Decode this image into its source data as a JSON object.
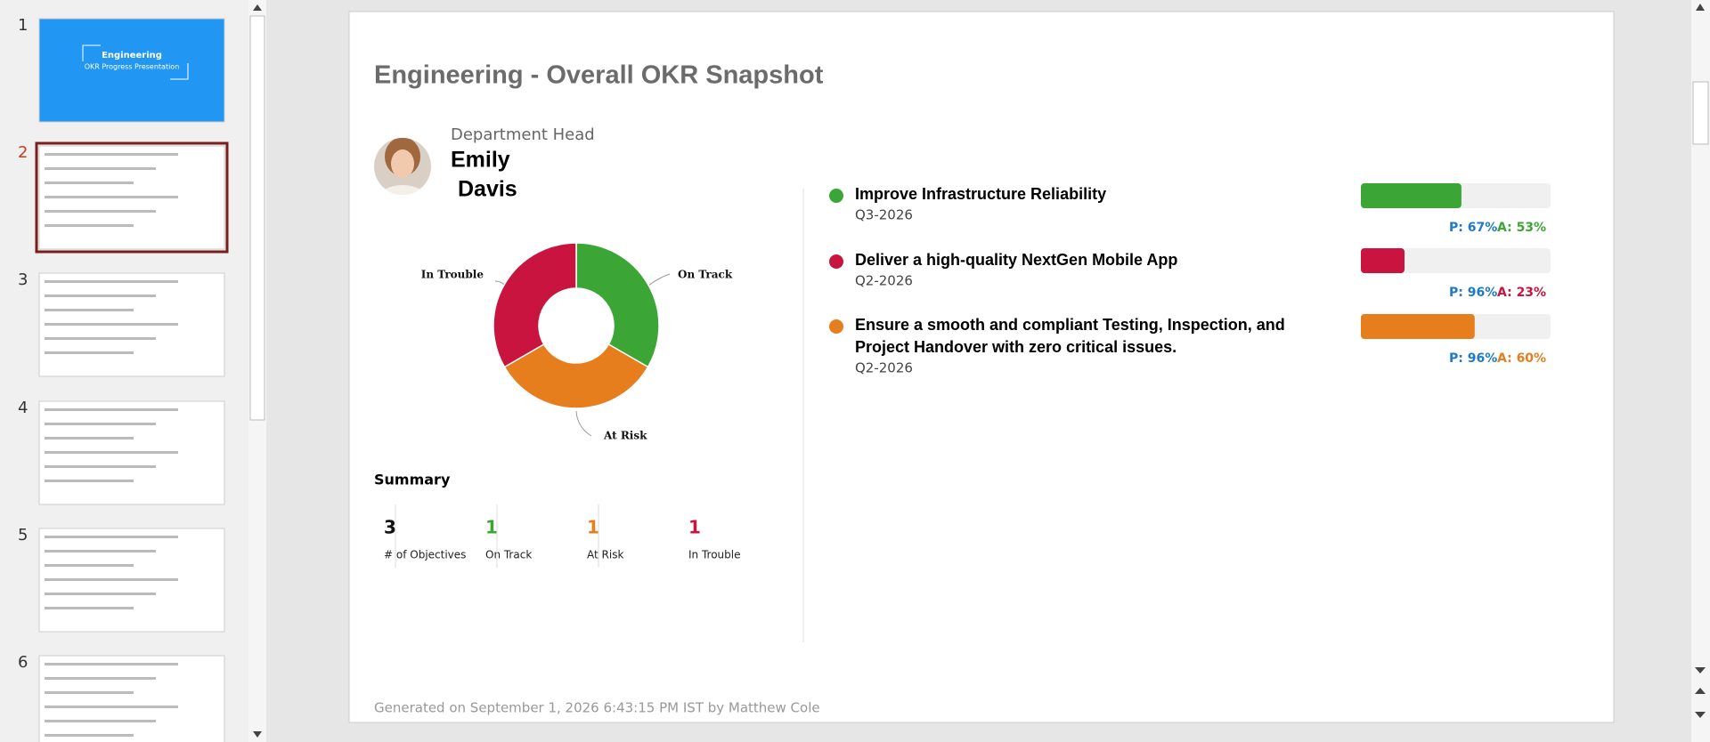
{
  "thumbnails": [
    {
      "number": 1,
      "title": "Engineering",
      "subtitle": "OKR Progress Presentation"
    },
    {
      "number": 2
    },
    {
      "number": 3
    },
    {
      "number": 4
    },
    {
      "number": 5
    },
    {
      "number": 6
    }
  ],
  "slide": {
    "title": "Engineering - Overall OKR Snapshot",
    "owner_role": "Department Head",
    "owner_first": "Emily",
    "owner_last": "Davis",
    "donut": {
      "type": "pie",
      "categories": [
        "On Track",
        "At Risk",
        "In Trouble"
      ],
      "values": [
        1,
        1,
        1
      ],
      "colors": [
        "#3ba635",
        "#e67e1e",
        "#c8143f"
      ]
    },
    "summary_title": "Summary",
    "summary": [
      {
        "value": 3,
        "label": "# of Objectives",
        "color": "#111"
      },
      {
        "value": 1,
        "label": "On Track",
        "color": "#3ba635"
      },
      {
        "value": 1,
        "label": "At Risk",
        "color": "#e67e1e"
      },
      {
        "value": 1,
        "label": "In Trouble",
        "color": "#c8143f"
      }
    ],
    "objectives": [
      {
        "title": [
          "Improve Infrastructure Reliability"
        ],
        "period": "Q3-2026",
        "color": "#3ba635",
        "planned_label": "P: 67%",
        "actual_label": "A: 53%",
        "actual": 53
      },
      {
        "title": [
          "Deliver a high-quality NextGen Mobile App"
        ],
        "period": "Q2-2026",
        "color": "#c8143f",
        "planned_label": "P: 96%",
        "actual_label": "A: 23%",
        "actual": 23
      },
      {
        "title": [
          "Ensure a smooth and compliant Testing, Inspection, and",
          "Project Handover with zero critical issues."
        ],
        "period": "Q2-2026",
        "color": "#e67e1e",
        "planned_label": "P: 96%",
        "actual_label": "A: 60%",
        "actual": 60
      }
    ],
    "footer": "Generated on September 1, 2026 6:43:15 PM IST by Matthew  Cole"
  }
}
